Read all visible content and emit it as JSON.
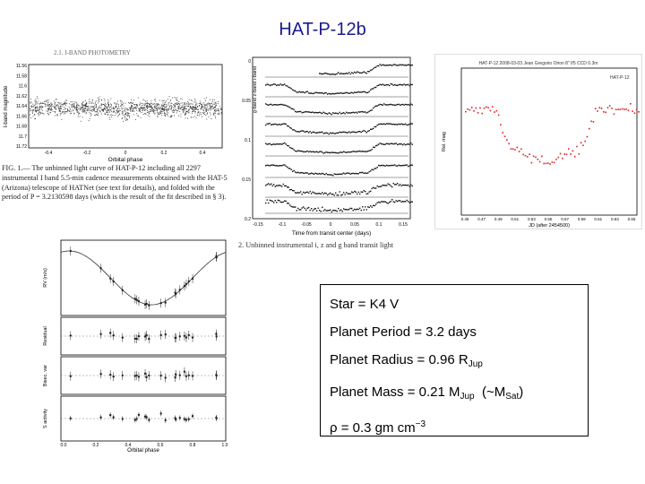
{
  "slide": {
    "title": "HAT-P-12b"
  },
  "fig1": {
    "header_stub": "2.1.  I-BAND PHOTOMETRY",
    "ylabel": "I-band magnitude",
    "xlabel": "Orbital phase",
    "yticks": [
      "11.56",
      "11.58",
      "11.6",
      "11.62",
      "11.64",
      "11.66",
      "11.68",
      "11.7",
      "11.72"
    ],
    "xticks": [
      "-0.4",
      "-0.2",
      "0",
      "0.2",
      "0.4"
    ],
    "caption": "FIG. 1.— The unbinned light curve of HAT-P-12 including all 2297 instrumental I band 5.5-min cadence measurements obtained with the HAT-5 (Arizona) telescope of HATNet (see text for details), and folded with the period of P = 3.2130598 days (which is the result of the fit described in § 3)."
  },
  "fig2": {
    "ylabel_top": "g-band  z-band  i-band",
    "xlabel": "Time from transit center (days)",
    "xticks": [
      "-0.15",
      "-0.1",
      "-0.05",
      "0",
      "0.05",
      "0.1",
      "0.15"
    ],
    "yticks": [
      "0",
      "0.05",
      "0.1",
      "0.15",
      "0.2"
    ],
    "caption": "2.  Unbinned instrumental i, z and g band transit light"
  },
  "fig3": {
    "header": "HAT-P-12  2008-03-03  Jean Gregorio  Orion 8\" f/5  CCD 0.3m",
    "xlabel": "JD (after 2454500)",
    "panel_label": "HAT-P-12",
    "ylabel": "Rel. mag",
    "xticks": [
      "0.45",
      "0.47",
      "0.49",
      "0.51",
      "0.53",
      "0.55",
      "0.57",
      "0.59",
      "0.61",
      "0.63",
      "0.65"
    ]
  },
  "fig4": {
    "ylabels": [
      "RV (m/s)",
      "Residual",
      "Bisec. var",
      "S activity"
    ],
    "xlabel": "Orbital phase",
    "xticks": [
      "0.0",
      "0.2",
      "0.4",
      "0.6",
      "0.8",
      "1.0"
    ]
  },
  "facts": {
    "star": "Star = K4 V",
    "period": "Planet Period = 3.2 days",
    "radius_text": "Planet Radius = 0.96 R",
    "radius_sub": "Jup",
    "mass_text": "Planet Mass = 0.21 M",
    "mass_sub": "Jup",
    "mass_extra_open": "(~M",
    "mass_extra_sub": "Sat",
    "mass_extra_close": ")",
    "density_symbol": "ρ",
    "density_text": " = 0.3 gm cm",
    "density_sup": "−3"
  }
}
